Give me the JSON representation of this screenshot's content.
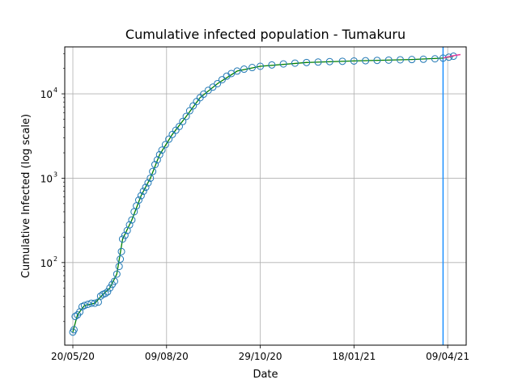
{
  "chart_data": {
    "type": "scatter",
    "title": "Cumulative infected population - Tumakuru",
    "xlabel": "Date",
    "ylabel": "Cumulative Infected (log scale)",
    "yscale": "log",
    "xlim": [
      "2020-05-13",
      "2021-04-25"
    ],
    "ylim": [
      10.5,
      36000
    ],
    "grid": true,
    "x_ticks": [
      {
        "date": "2020-05-20",
        "label": "20/05/20"
      },
      {
        "date": "2020-08-09",
        "label": "09/08/20"
      },
      {
        "date": "2020-10-29",
        "label": "29/10/20"
      },
      {
        "date": "2021-01-18",
        "label": "18/01/21"
      },
      {
        "date": "2021-04-09",
        "label": "09/04/21"
      }
    ],
    "y_ticks": [
      {
        "value": 100,
        "label_base": "10",
        "label_exp": "2"
      },
      {
        "value": 1000,
        "label_base": "10",
        "label_exp": "3"
      },
      {
        "value": 10000,
        "label_base": "10",
        "label_exp": "4"
      }
    ],
    "vertical_line": {
      "date": "2021-04-05",
      "color": "#1e90ff"
    },
    "colors": {
      "observed": "#1f77b4",
      "fit": "#008000",
      "forecast": "#e6399b"
    },
    "series": [
      {
        "role": "observed",
        "points": [
          [
            "2020-05-20",
            15
          ],
          [
            "2020-05-21",
            16
          ],
          [
            "2020-05-22",
            23
          ],
          [
            "2020-05-24",
            24
          ],
          [
            "2020-05-26",
            26
          ],
          [
            "2020-05-28",
            30
          ],
          [
            "2020-05-30",
            31
          ],
          [
            "2020-06-02",
            32
          ],
          [
            "2020-06-05",
            33
          ],
          [
            "2020-06-08",
            33
          ],
          [
            "2020-06-11",
            34
          ],
          [
            "2020-06-13",
            40
          ],
          [
            "2020-06-15",
            42
          ],
          [
            "2020-06-17",
            43
          ],
          [
            "2020-06-19",
            45
          ],
          [
            "2020-06-21",
            50
          ],
          [
            "2020-06-23",
            55
          ],
          [
            "2020-06-25",
            60
          ],
          [
            "2020-06-27",
            73
          ],
          [
            "2020-06-29",
            90
          ],
          [
            "2020-06-30",
            110
          ],
          [
            "2020-07-01",
            135
          ],
          [
            "2020-07-02",
            190
          ],
          [
            "2020-07-04",
            210
          ],
          [
            "2020-07-06",
            240
          ],
          [
            "2020-07-08",
            280
          ],
          [
            "2020-07-10",
            320
          ],
          [
            "2020-07-12",
            400
          ],
          [
            "2020-07-14",
            470
          ],
          [
            "2020-07-16",
            550
          ],
          [
            "2020-07-18",
            620
          ],
          [
            "2020-07-20",
            700
          ],
          [
            "2020-07-22",
            780
          ],
          [
            "2020-07-24",
            880
          ],
          [
            "2020-07-26",
            1000
          ],
          [
            "2020-07-28",
            1200
          ],
          [
            "2020-07-30",
            1450
          ],
          [
            "2020-08-01",
            1650
          ],
          [
            "2020-08-03",
            1900
          ],
          [
            "2020-08-05",
            2150
          ],
          [
            "2020-08-08",
            2500
          ],
          [
            "2020-08-11",
            2900
          ],
          [
            "2020-08-14",
            3300
          ],
          [
            "2020-08-17",
            3700
          ],
          [
            "2020-08-20",
            4100
          ],
          [
            "2020-08-23",
            4700
          ],
          [
            "2020-08-26",
            5400
          ],
          [
            "2020-08-29",
            6300
          ],
          [
            "2020-09-01",
            7200
          ],
          [
            "2020-09-04",
            8100
          ],
          [
            "2020-09-07",
            9000
          ],
          [
            "2020-09-10",
            9900
          ],
          [
            "2020-09-14",
            11000
          ],
          [
            "2020-09-18",
            12000
          ],
          [
            "2020-09-22",
            13200
          ],
          [
            "2020-09-26",
            14700
          ],
          [
            "2020-09-30",
            16200
          ],
          [
            "2020-10-04",
            17400
          ],
          [
            "2020-10-09",
            18600
          ],
          [
            "2020-10-15",
            19600
          ],
          [
            "2020-10-22",
            20500
          ],
          [
            "2020-10-29",
            21200
          ],
          [
            "2020-11-08",
            22000
          ],
          [
            "2020-11-18",
            22600
          ],
          [
            "2020-11-28",
            23100
          ],
          [
            "2020-12-08",
            23500
          ],
          [
            "2020-12-18",
            23800
          ],
          [
            "2020-12-28",
            24100
          ],
          [
            "2021-01-08",
            24300
          ],
          [
            "2021-01-18",
            24500
          ],
          [
            "2021-01-28",
            24700
          ],
          [
            "2021-02-07",
            24900
          ],
          [
            "2021-02-17",
            25100
          ],
          [
            "2021-02-27",
            25300
          ],
          [
            "2021-03-09",
            25500
          ],
          [
            "2021-03-19",
            25700
          ],
          [
            "2021-03-29",
            26000
          ],
          [
            "2021-04-05",
            26500
          ],
          [
            "2021-04-10",
            27200
          ],
          [
            "2021-04-14",
            27900
          ]
        ]
      },
      {
        "role": "fit",
        "points": [
          [
            "2020-05-20",
            15
          ],
          [
            "2020-05-24",
            24
          ],
          [
            "2020-05-30",
            31
          ],
          [
            "2020-06-08",
            33
          ],
          [
            "2020-06-15",
            42
          ],
          [
            "2020-06-21",
            50
          ],
          [
            "2020-06-27",
            73
          ],
          [
            "2020-07-02",
            190
          ],
          [
            "2020-07-10",
            320
          ],
          [
            "2020-07-18",
            620
          ],
          [
            "2020-07-26",
            1000
          ],
          [
            "2020-08-03",
            1900
          ],
          [
            "2020-08-14",
            3300
          ],
          [
            "2020-08-26",
            5400
          ],
          [
            "2020-09-07",
            9000
          ],
          [
            "2020-09-22",
            13200
          ],
          [
            "2020-10-09",
            18600
          ],
          [
            "2020-10-29",
            21200
          ],
          [
            "2020-12-08",
            23500
          ],
          [
            "2021-01-18",
            24500
          ],
          [
            "2021-03-09",
            25500
          ],
          [
            "2021-04-05",
            26500
          ],
          [
            "2021-04-14",
            27900
          ]
        ]
      },
      {
        "role": "forecast",
        "points": [
          [
            "2021-04-05",
            26600
          ],
          [
            "2021-04-10",
            27500
          ],
          [
            "2021-04-15",
            28500
          ],
          [
            "2021-04-20",
            29200
          ]
        ]
      }
    ]
  }
}
